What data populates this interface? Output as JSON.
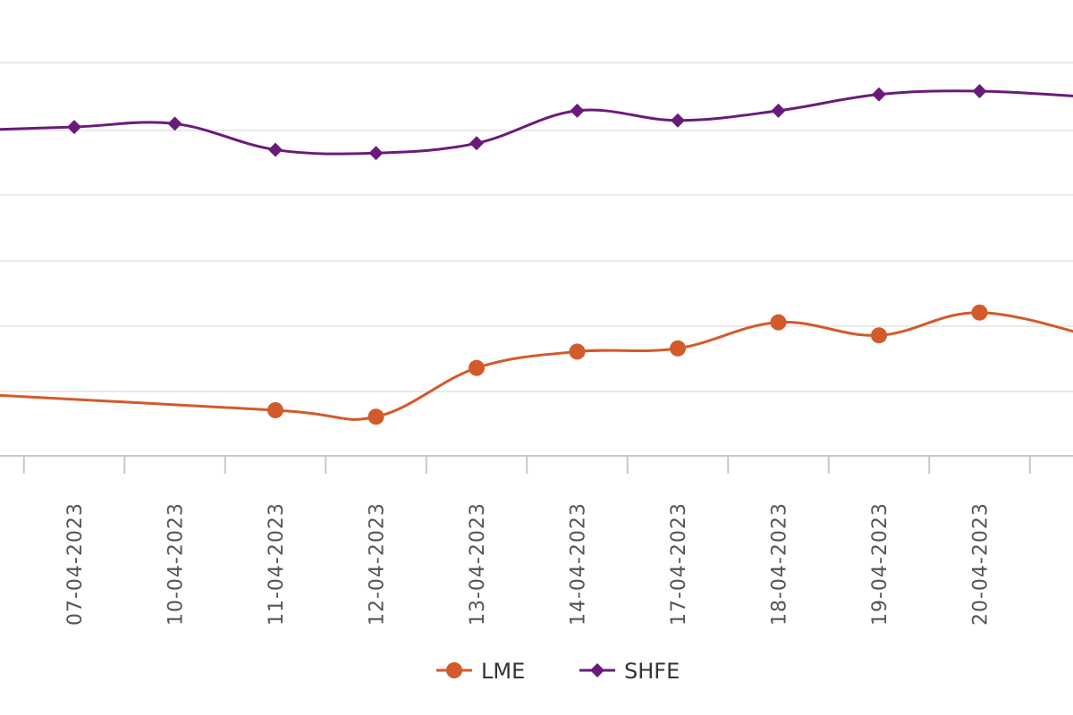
{
  "chart_data": {
    "type": "line",
    "title": "",
    "xlabel": "",
    "ylabel": "",
    "grid": true,
    "legend_position": "bottom-center",
    "categories": [
      "07-04-2023",
      "10-04-2023",
      "11-04-2023",
      "12-04-2023",
      "13-04-2023",
      "14-04-2023",
      "17-04-2023",
      "18-04-2023",
      "19-04-2023",
      "20-04-2023"
    ],
    "series": [
      {
        "name": "LME",
        "color": "#d35a2a",
        "marker": "circle",
        "values": [
          null,
          null,
          0.7,
          0.6,
          1.35,
          1.6,
          1.65,
          2.05,
          1.85,
          2.2
        ]
      },
      {
        "name": "SHFE",
        "color": "#6a1b7a",
        "marker": "diamond",
        "values": [
          5.05,
          5.1,
          4.7,
          4.65,
          4.8,
          5.3,
          5.15,
          5.3,
          5.55,
          5.6
        ]
      }
    ]
  }
}
